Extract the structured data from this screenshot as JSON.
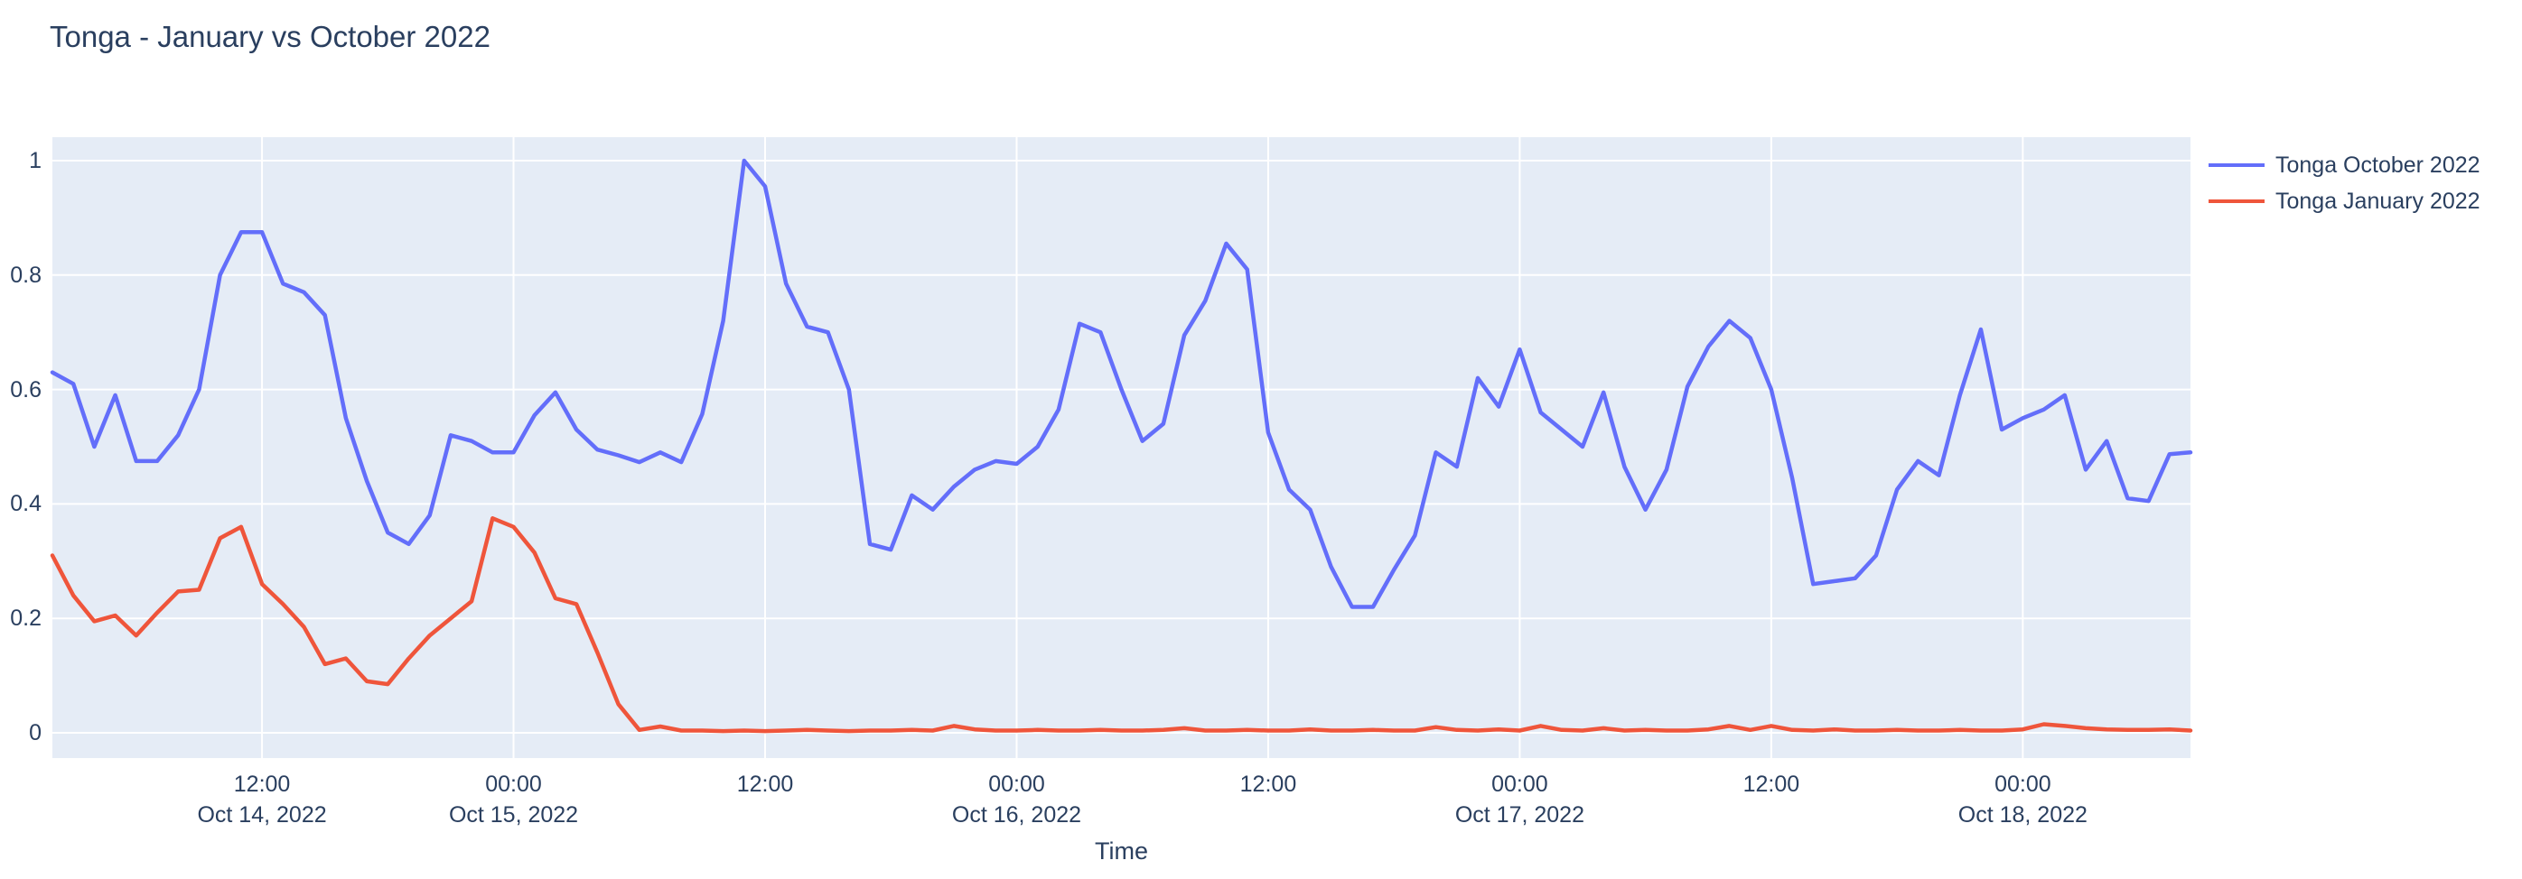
{
  "title": "Tonga - January vs October 2022",
  "legend": {
    "items": [
      {
        "label": "Tonga October 2022",
        "color": "#636EFA"
      },
      {
        "label": "Tonga January 2022",
        "color": "#EF553B"
      }
    ]
  },
  "axes": {
    "y": {
      "ticks": [
        {
          "label": "0",
          "value": 0
        },
        {
          "label": "0.2",
          "value": 0.2
        },
        {
          "label": "0.4",
          "value": 0.4
        },
        {
          "label": "0.6",
          "value": 0.6
        },
        {
          "label": "0.8",
          "value": 0.8
        },
        {
          "label": "1",
          "value": 1
        }
      ]
    },
    "x": {
      "title": "Time",
      "ticks": [
        {
          "time": "12:00",
          "date": "Oct 14, 2022",
          "hour": 10
        },
        {
          "time": "00:00",
          "date": "Oct 15, 2022",
          "hour": 22
        },
        {
          "time": "12:00",
          "date": "",
          "hour": 34
        },
        {
          "time": "00:00",
          "date": "Oct 16, 2022",
          "hour": 46
        },
        {
          "time": "12:00",
          "date": "",
          "hour": 58
        },
        {
          "time": "00:00",
          "date": "Oct 17, 2022",
          "hour": 70
        },
        {
          "time": "12:00",
          "date": "",
          "hour": 82
        },
        {
          "time": "00:00",
          "date": "Oct 18, 2022",
          "hour": 94
        }
      ]
    }
  },
  "colors": {
    "plot_background": "#E5ECF6",
    "gridline": "#FFFFFF",
    "text": "#2a3f5f",
    "series_october": "#636EFA",
    "series_january": "#EF553B"
  },
  "chart_data": {
    "type": "line",
    "title": "Tonga - January vs October 2022",
    "xlabel": "Time",
    "ylabel": "",
    "x_start_label": "Oct 14, 2022 02:00",
    "x_step_hours": 1,
    "x_range_hours": [
      0,
      102
    ],
    "ylim": [
      -0.041,
      1.043
    ],
    "y_gridlines": [
      0,
      0.2,
      0.4,
      0.6,
      0.8,
      1
    ],
    "x_tick_hours": [
      10,
      22,
      34,
      46,
      58,
      70,
      82,
      94
    ],
    "grid": true,
    "legend_position": "right-top-outside",
    "series": [
      {
        "name": "Tonga October 2022",
        "color": "#636EFA",
        "values": [
          0.63,
          0.61,
          0.5,
          0.59,
          0.475,
          0.475,
          0.52,
          0.6,
          0.8,
          0.875,
          0.875,
          0.785,
          0.77,
          0.73,
          0.55,
          0.44,
          0.35,
          0.33,
          0.38,
          0.52,
          0.51,
          0.49,
          0.49,
          0.555,
          0.595,
          0.53,
          0.495,
          0.485,
          0.473,
          0.49,
          0.473,
          0.557,
          0.72,
          1.0,
          0.955,
          0.785,
          0.71,
          0.7,
          0.6,
          0.33,
          0.32,
          0.415,
          0.39,
          0.43,
          0.46,
          0.475,
          0.47,
          0.5,
          0.565,
          0.715,
          0.7,
          0.6,
          0.51,
          0.54,
          0.695,
          0.755,
          0.855,
          0.81,
          0.525,
          0.425,
          0.39,
          0.29,
          0.22,
          0.22,
          0.285,
          0.345,
          0.49,
          0.465,
          0.62,
          0.57,
          0.67,
          0.56,
          0.53,
          0.5,
          0.595,
          0.465,
          0.39,
          0.46,
          0.605,
          0.675,
          0.72,
          0.69,
          0.6,
          0.445,
          0.26,
          0.265,
          0.27,
          0.31,
          0.425,
          0.475,
          0.45,
          0.59,
          0.705,
          0.53,
          0.55,
          0.565,
          0.59,
          0.46,
          0.51,
          0.41,
          0.405,
          0.487,
          0.49
        ]
      },
      {
        "name": "Tonga January 2022",
        "color": "#EF553B",
        "values": [
          0.31,
          0.24,
          0.195,
          0.205,
          0.17,
          0.21,
          0.247,
          0.25,
          0.34,
          0.36,
          0.26,
          0.225,
          0.185,
          0.12,
          0.13,
          0.09,
          0.085,
          0.13,
          0.17,
          0.2,
          0.23,
          0.375,
          0.36,
          0.315,
          0.235,
          0.225,
          0.14,
          0.05,
          0.005,
          0.011,
          0.004,
          0.004,
          0.003,
          0.004,
          0.003,
          0.004,
          0.005,
          0.004,
          0.003,
          0.004,
          0.004,
          0.005,
          0.004,
          0.012,
          0.006,
          0.004,
          0.004,
          0.005,
          0.004,
          0.004,
          0.005,
          0.004,
          0.004,
          0.005,
          0.008,
          0.004,
          0.004,
          0.005,
          0.004,
          0.004,
          0.006,
          0.004,
          0.004,
          0.005,
          0.004,
          0.004,
          0.01,
          0.005,
          0.004,
          0.006,
          0.004,
          0.012,
          0.005,
          0.004,
          0.008,
          0.004,
          0.005,
          0.004,
          0.004,
          0.006,
          0.012,
          0.005,
          0.012,
          0.005,
          0.004,
          0.006,
          0.004,
          0.004,
          0.005,
          0.004,
          0.004,
          0.005,
          0.004,
          0.004,
          0.006,
          0.015,
          0.012,
          0.008,
          0.006,
          0.005,
          0.005,
          0.006,
          0.004
        ]
      }
    ]
  }
}
